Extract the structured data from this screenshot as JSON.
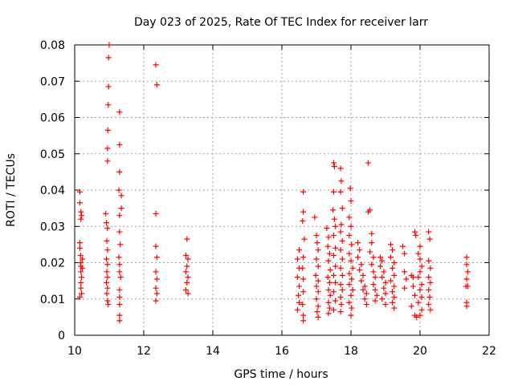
{
  "chart_data": {
    "type": "scatter",
    "title": "Day 023 of 2025, Rate Of TEC Index for receiver larr",
    "xlabel": "GPS time / hours",
    "ylabel": "ROTI / TECUs",
    "xlim": [
      10,
      22
    ],
    "ylim": [
      0,
      0.08
    ],
    "x_ticks": [
      10,
      12,
      14,
      16,
      18,
      20,
      22
    ],
    "y_ticks": [
      0,
      0.01,
      0.02,
      0.03,
      0.04,
      0.05,
      0.06,
      0.07,
      0.08
    ],
    "x_tick_labels": [
      "10",
      "12",
      "14",
      "16",
      "18",
      "20",
      "22"
    ],
    "y_tick_labels": [
      "0",
      "0.01",
      "0.02",
      "0.03",
      "0.04",
      "0.05",
      "0.06",
      "0.07",
      "0.08"
    ],
    "grid": true,
    "marker": "+",
    "marker_color": "#ff0000",
    "series": [
      {
        "name": "ROTI",
        "points": [
          [
            10.15,
            0.0395
          ],
          [
            10.15,
            0.0365
          ],
          [
            10.18,
            0.034
          ],
          [
            10.18,
            0.032
          ],
          [
            10.2,
            0.033
          ],
          [
            10.15,
            0.0255
          ],
          [
            10.15,
            0.024
          ],
          [
            10.17,
            0.022
          ],
          [
            10.17,
            0.02
          ],
          [
            10.18,
            0.019
          ],
          [
            10.18,
            0.0175
          ],
          [
            10.2,
            0.016
          ],
          [
            10.18,
            0.0145
          ],
          [
            10.18,
            0.013
          ],
          [
            10.2,
            0.0115
          ],
          [
            10.15,
            0.0105
          ],
          [
            10.22,
            0.021
          ],
          [
            10.22,
            0.0185
          ],
          [
            10.9,
            0.0335
          ],
          [
            10.92,
            0.031
          ],
          [
            10.95,
            0.0295
          ],
          [
            10.93,
            0.026
          ],
          [
            10.95,
            0.0235
          ],
          [
            10.92,
            0.021
          ],
          [
            10.95,
            0.0195
          ],
          [
            10.93,
            0.0175
          ],
          [
            10.95,
            0.016
          ],
          [
            10.92,
            0.0145
          ],
          [
            10.95,
            0.013
          ],
          [
            10.93,
            0.0115
          ],
          [
            10.95,
            0.0095
          ],
          [
            10.97,
            0.0085
          ],
          [
            10.95,
            0.048
          ],
          [
            10.95,
            0.0515
          ],
          [
            10.96,
            0.0565
          ],
          [
            10.97,
            0.0635
          ],
          [
            10.98,
            0.0685
          ],
          [
            10.98,
            0.0765
          ],
          [
            11.0,
            0.08
          ],
          [
            11.3,
            0.0615
          ],
          [
            11.3,
            0.0525
          ],
          [
            11.3,
            0.045
          ],
          [
            11.28,
            0.04
          ],
          [
            11.35,
            0.0385
          ],
          [
            11.35,
            0.035
          ],
          [
            11.3,
            0.033
          ],
          [
            11.3,
            0.0285
          ],
          [
            11.32,
            0.025
          ],
          [
            11.28,
            0.0215
          ],
          [
            11.3,
            0.0195
          ],
          [
            11.3,
            0.0175
          ],
          [
            11.33,
            0.016
          ],
          [
            11.3,
            0.0125
          ],
          [
            11.3,
            0.0105
          ],
          [
            11.3,
            0.0085
          ],
          [
            11.3,
            0.0055
          ],
          [
            11.3,
            0.004
          ],
          [
            12.35,
            0.0745
          ],
          [
            12.38,
            0.069
          ],
          [
            12.35,
            0.0335
          ],
          [
            12.35,
            0.0245
          ],
          [
            12.38,
            0.0215
          ],
          [
            12.35,
            0.0175
          ],
          [
            12.38,
            0.0155
          ],
          [
            12.35,
            0.013
          ],
          [
            12.38,
            0.0115
          ],
          [
            12.35,
            0.0095
          ],
          [
            13.25,
            0.0265
          ],
          [
            13.22,
            0.022
          ],
          [
            13.28,
            0.021
          ],
          [
            13.25,
            0.019
          ],
          [
            13.22,
            0.0175
          ],
          [
            13.28,
            0.016
          ],
          [
            13.25,
            0.0145
          ],
          [
            13.22,
            0.0125
          ],
          [
            13.28,
            0.0115
          ],
          [
            16.5,
            0.0235
          ],
          [
            16.45,
            0.021
          ],
          [
            16.5,
            0.0185
          ],
          [
            16.45,
            0.016
          ],
          [
            16.5,
            0.0135
          ],
          [
            16.48,
            0.011
          ],
          [
            16.5,
            0.009
          ],
          [
            16.45,
            0.007
          ],
          [
            16.62,
            0.0395
          ],
          [
            16.62,
            0.034
          ],
          [
            16.6,
            0.0315
          ],
          [
            16.65,
            0.0265
          ],
          [
            16.62,
            0.0215
          ],
          [
            16.6,
            0.0185
          ],
          [
            16.62,
            0.0155
          ],
          [
            16.62,
            0.012
          ],
          [
            16.6,
            0.0085
          ],
          [
            16.62,
            0.0055
          ],
          [
            16.62,
            0.004
          ],
          [
            16.95,
            0.0325
          ],
          [
            17.0,
            0.0275
          ],
          [
            17.02,
            0.0255
          ],
          [
            17.05,
            0.0235
          ],
          [
            17.0,
            0.021
          ],
          [
            17.05,
            0.019
          ],
          [
            16.98,
            0.0165
          ],
          [
            17.05,
            0.015
          ],
          [
            17.0,
            0.0135
          ],
          [
            17.05,
            0.012
          ],
          [
            17.0,
            0.01
          ],
          [
            17.05,
            0.008
          ],
          [
            17.02,
            0.0065
          ],
          [
            17.05,
            0.005
          ],
          [
            17.3,
            0.0295
          ],
          [
            17.35,
            0.027
          ],
          [
            17.33,
            0.0245
          ],
          [
            17.38,
            0.0225
          ],
          [
            17.35,
            0.0205
          ],
          [
            17.4,
            0.018
          ],
          [
            17.33,
            0.016
          ],
          [
            17.38,
            0.0145
          ],
          [
            17.35,
            0.0125
          ],
          [
            17.4,
            0.011
          ],
          [
            17.35,
            0.009
          ],
          [
            17.38,
            0.0075
          ],
          [
            17.35,
            0.006
          ],
          [
            17.5,
            0.0475
          ],
          [
            17.52,
            0.0465
          ],
          [
            17.5,
            0.0395
          ],
          [
            17.48,
            0.0345
          ],
          [
            17.52,
            0.032
          ],
          [
            17.55,
            0.03
          ],
          [
            17.5,
            0.0275
          ],
          [
            17.55,
            0.024
          ],
          [
            17.5,
            0.022
          ],
          [
            17.55,
            0.019
          ],
          [
            17.5,
            0.0165
          ],
          [
            17.55,
            0.0145
          ],
          [
            17.5,
            0.012
          ],
          [
            17.55,
            0.0095
          ],
          [
            17.5,
            0.007
          ],
          [
            17.7,
            0.046
          ],
          [
            17.72,
            0.0425
          ],
          [
            17.7,
            0.0395
          ],
          [
            17.75,
            0.035
          ],
          [
            17.72,
            0.0305
          ],
          [
            17.7,
            0.0285
          ],
          [
            17.75,
            0.026
          ],
          [
            17.7,
            0.0235
          ],
          [
            17.75,
            0.021
          ],
          [
            17.7,
            0.0185
          ],
          [
            17.75,
            0.0165
          ],
          [
            17.7,
            0.014
          ],
          [
            17.75,
            0.0125
          ],
          [
            17.7,
            0.0105
          ],
          [
            17.72,
            0.0085
          ],
          [
            17.7,
            0.0065
          ],
          [
            17.98,
            0.0405
          ],
          [
            18.0,
            0.037
          ],
          [
            17.95,
            0.0325
          ],
          [
            18.0,
            0.03
          ],
          [
            17.95,
            0.0275
          ],
          [
            18.02,
            0.025
          ],
          [
            17.95,
            0.0225
          ],
          [
            18.0,
            0.0205
          ],
          [
            18.05,
            0.0185
          ],
          [
            17.95,
            0.017
          ],
          [
            18.02,
            0.0155
          ],
          [
            17.95,
            0.014
          ],
          [
            18.05,
            0.0125
          ],
          [
            18.0,
            0.011
          ],
          [
            17.95,
            0.009
          ],
          [
            18.02,
            0.0075
          ],
          [
            18.0,
            0.0055
          ],
          [
            18.2,
            0.0255
          ],
          [
            18.25,
            0.0235
          ],
          [
            18.2,
            0.0215
          ],
          [
            18.3,
            0.0195
          ],
          [
            18.25,
            0.018
          ],
          [
            18.35,
            0.0165
          ],
          [
            18.3,
            0.015
          ],
          [
            18.4,
            0.0135
          ],
          [
            18.35,
            0.0125
          ],
          [
            18.45,
            0.0115
          ],
          [
            18.4,
            0.01
          ],
          [
            18.45,
            0.0085
          ],
          [
            18.5,
            0.0475
          ],
          [
            18.5,
            0.034
          ],
          [
            18.55,
            0.0345
          ],
          [
            18.6,
            0.028
          ],
          [
            18.6,
            0.0255
          ],
          [
            18.55,
            0.023
          ],
          [
            18.65,
            0.0215
          ],
          [
            18.6,
            0.0195
          ],
          [
            18.65,
            0.0175
          ],
          [
            18.7,
            0.016
          ],
          [
            18.65,
            0.014
          ],
          [
            18.7,
            0.0125
          ],
          [
            18.75,
            0.011
          ],
          [
            18.7,
            0.0095
          ],
          [
            18.85,
            0.0215
          ],
          [
            18.9,
            0.0205
          ],
          [
            18.85,
            0.019
          ],
          [
            18.95,
            0.0175
          ],
          [
            18.9,
            0.016
          ],
          [
            19.0,
            0.0145
          ],
          [
            18.95,
            0.013
          ],
          [
            19.0,
            0.0115
          ],
          [
            18.9,
            0.01
          ],
          [
            19.0,
            0.0085
          ],
          [
            19.15,
            0.025
          ],
          [
            19.2,
            0.0235
          ],
          [
            19.15,
            0.0215
          ],
          [
            19.25,
            0.02
          ],
          [
            19.2,
            0.0185
          ],
          [
            19.25,
            0.0165
          ],
          [
            19.15,
            0.015
          ],
          [
            19.25,
            0.0135
          ],
          [
            19.2,
            0.012
          ],
          [
            19.25,
            0.0105
          ],
          [
            19.2,
            0.009
          ],
          [
            19.25,
            0.0075
          ],
          [
            19.5,
            0.0245
          ],
          [
            19.55,
            0.0225
          ],
          [
            19.55,
            0.0175
          ],
          [
            19.6,
            0.0155
          ],
          [
            19.55,
            0.013
          ],
          [
            19.75,
            0.0165
          ],
          [
            19.8,
            0.016
          ],
          [
            19.8,
            0.0135
          ],
          [
            19.85,
            0.011
          ],
          [
            19.75,
            0.008
          ],
          [
            19.85,
            0.0055
          ],
          [
            19.9,
            0.005
          ],
          [
            19.85,
            0.0285
          ],
          [
            19.88,
            0.0275
          ],
          [
            20.0,
            0.0245
          ],
          [
            19.95,
            0.0225
          ],
          [
            20.0,
            0.021
          ],
          [
            20.05,
            0.019
          ],
          [
            20.0,
            0.0175
          ],
          [
            19.95,
            0.016
          ],
          [
            20.05,
            0.014
          ],
          [
            20.0,
            0.0125
          ],
          [
            20.05,
            0.0105
          ],
          [
            19.95,
            0.009
          ],
          [
            20.05,
            0.007
          ],
          [
            20.0,
            0.0055
          ],
          [
            20.25,
            0.0285
          ],
          [
            20.28,
            0.0265
          ],
          [
            20.25,
            0.0205
          ],
          [
            20.3,
            0.0185
          ],
          [
            20.25,
            0.016
          ],
          [
            20.3,
            0.0145
          ],
          [
            20.25,
            0.0125
          ],
          [
            20.28,
            0.0105
          ],
          [
            20.25,
            0.0085
          ],
          [
            20.3,
            0.007
          ],
          [
            21.35,
            0.0215
          ],
          [
            21.35,
            0.0195
          ],
          [
            21.38,
            0.0175
          ],
          [
            21.35,
            0.0155
          ],
          [
            21.33,
            0.0135
          ],
          [
            21.38,
            0.0135
          ],
          [
            21.35,
            0.009
          ],
          [
            21.35,
            0.008
          ]
        ]
      }
    ]
  }
}
